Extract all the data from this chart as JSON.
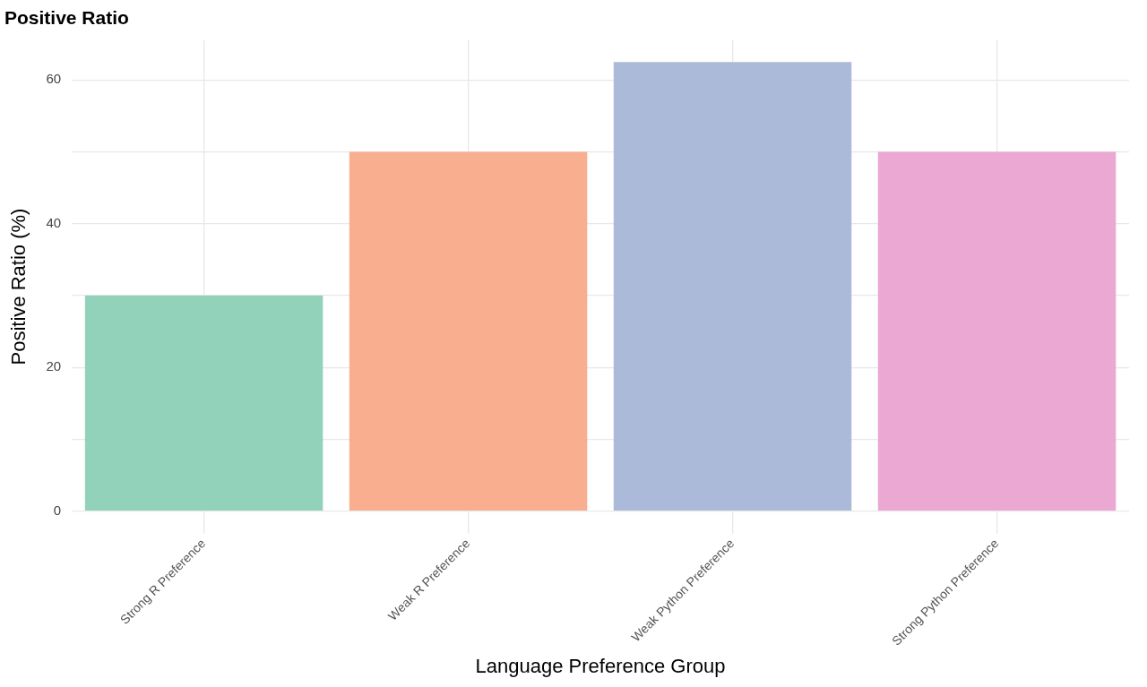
{
  "chart_data": {
    "type": "bar",
    "title": "Positive Ratio",
    "xlabel": "Language Preference Group",
    "ylabel": "Positive Ratio (%)",
    "categories": [
      "Strong R Preference",
      "Weak R Preference",
      "Weak Python Preference",
      "Strong Python Preference"
    ],
    "values": [
      30,
      50,
      62.5,
      50
    ],
    "colors": [
      "#92d2bb",
      "#f9ae8f",
      "#acbad9",
      "#eaa8d2"
    ],
    "ylim": [
      -3.125,
      65.625
    ],
    "yticks": [
      0,
      {
        "value": 10,
        "label": null
      },
      20,
      {
        "value": 30,
        "label": null
      },
      40,
      {
        "value": 50,
        "label": null
      },
      60
    ],
    "grid": true,
    "legend": false
  }
}
